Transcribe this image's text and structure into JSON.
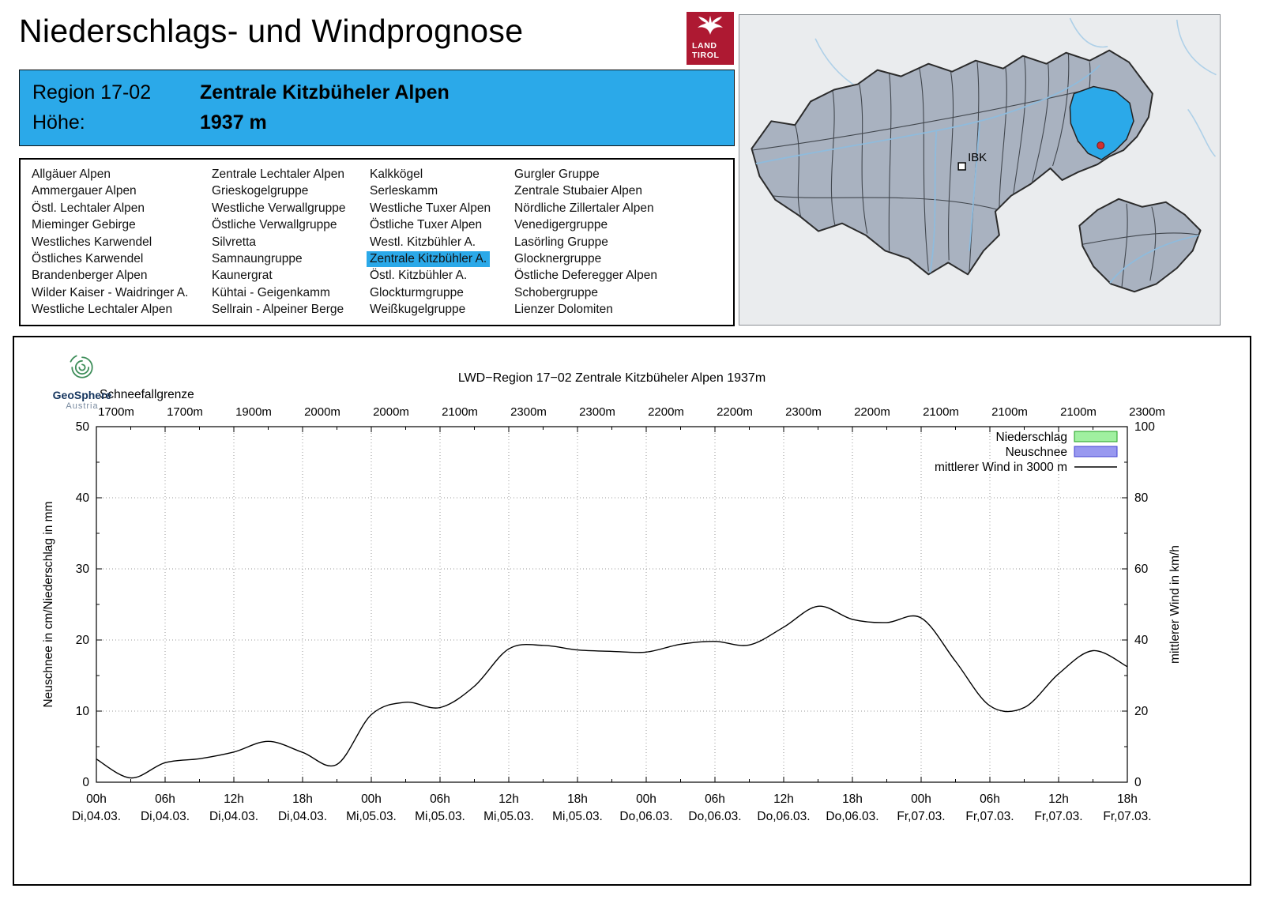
{
  "colors": {
    "accent": "#2BA9E9",
    "tirol_red": "#AE1932",
    "legend_precip_fill": "#A0F0A0",
    "legend_precip_border": "#1F9E1F",
    "legend_snow_fill": "#9898F0",
    "legend_snow_border": "#4040D0",
    "wind_line": "#000000",
    "map_region_fill": "#A9B2C0",
    "map_border": "#2B2B2B",
    "river": "#8FBBDC"
  },
  "header": {
    "title": "Niederschlags- und Windprognose"
  },
  "tirol_logo": {
    "line1": "LAND",
    "line2": "TIROL"
  },
  "region_header": {
    "region_label": "Region 17-02",
    "region_name": "Zentrale Kitzbüheler Alpen",
    "altitude_label": "Höhe:",
    "altitude_value": "1937 m"
  },
  "region_list": {
    "selected": "Zentrale Kitzbühler A.",
    "columns": [
      [
        "Allgäuer Alpen",
        "Ammergauer Alpen",
        "Östl. Lechtaler Alpen",
        "Mieminger Gebirge",
        "Westliches Karwendel",
        "Östliches Karwendel",
        "Brandenberger Alpen",
        "Wilder Kaiser - Waidringer A.",
        "Westliche Lechtaler Alpen"
      ],
      [
        "Zentrale Lechtaler Alpen",
        "Grieskogelgruppe",
        "Westliche Verwallgruppe",
        "Östliche Verwallgruppe",
        "Silvretta",
        "Samnaungruppe",
        "Kaunergrat",
        "Kühtai - Geigenkamm",
        "Sellrain - Alpeiner Berge"
      ],
      [
        "Kalkkögel",
        "Serleskamm",
        "Westliche Tuxer Alpen",
        "Östliche Tuxer Alpen",
        "Westl. Kitzbühler A.",
        "Zentrale Kitzbühler A.",
        "Östl. Kitzbühler A.",
        "Glockturmgruppe",
        "Weißkugelgruppe"
      ],
      [
        "Gurgler Gruppe",
        "Zentrale Stubaier Alpen",
        "Nördliche Zillertaler Alpen",
        "Venedigergruppe",
        "Lasörling Gruppe",
        "Glocknergruppe",
        "Östliche Deferegger Alpen",
        "Schobergruppe",
        "Lienzer Dolomiten"
      ]
    ]
  },
  "map": {
    "ibk_label": "IBK"
  },
  "geosphere": {
    "name": "GeoSphere",
    "country": "Austria"
  },
  "chart_data": {
    "type": "line",
    "title": "LWD−Region 17−02 Zentrale Kitzbüheler Alpen 1937m",
    "snowline_label": "Schneefallgrenze",
    "snowline_values": [
      "1700m",
      "1700m",
      "1900m",
      "2000m",
      "2000m",
      "2100m",
      "2300m",
      "2300m",
      "2200m",
      "2200m",
      "2300m",
      "2200m",
      "2100m",
      "2100m",
      "2100m",
      "2300m"
    ],
    "ylabel_left": "Neuschnee in cm/Niederschlag in mm",
    "ylabel_right": "mittlerer Wind in km/h",
    "ylim_left": [
      0,
      50
    ],
    "ylim_right": [
      0,
      100
    ],
    "x_range_hours": [
      0,
      90
    ],
    "x_ticks": [
      {
        "hour": "00h",
        "date": "Di,04.03."
      },
      {
        "hour": "06h",
        "date": "Di,04.03."
      },
      {
        "hour": "12h",
        "date": "Di,04.03."
      },
      {
        "hour": "18h",
        "date": "Di,04.03."
      },
      {
        "hour": "00h",
        "date": "Mi,05.03."
      },
      {
        "hour": "06h",
        "date": "Mi,05.03."
      },
      {
        "hour": "12h",
        "date": "Mi,05.03."
      },
      {
        "hour": "18h",
        "date": "Mi,05.03."
      },
      {
        "hour": "00h",
        "date": "Do,06.03."
      },
      {
        "hour": "06h",
        "date": "Do,06.03."
      },
      {
        "hour": "12h",
        "date": "Do,06.03."
      },
      {
        "hour": "18h",
        "date": "Do,06.03."
      },
      {
        "hour": "00h",
        "date": "Fr,07.03."
      },
      {
        "hour": "06h",
        "date": "Fr,07.03."
      },
      {
        "hour": "12h",
        "date": "Fr,07.03."
      },
      {
        "hour": "18h",
        "date": "Fr,07.03."
      }
    ],
    "legend": [
      "Niederschlag",
      "Neuschnee",
      "mittlerer Wind in 3000 m"
    ],
    "legend_position": "top-right",
    "grid": true,
    "series": [
      {
        "name": "Niederschlag",
        "type": "bar",
        "axis": "left",
        "unit": "mm",
        "values": []
      },
      {
        "name": "Neuschnee",
        "type": "bar",
        "axis": "left",
        "unit": "cm",
        "values": []
      },
      {
        "name": "mittlerer Wind in 3000 m",
        "type": "line",
        "axis": "right",
        "unit": "km/h",
        "x_hours": [
          0,
          3,
          6,
          9,
          12,
          15,
          18,
          21,
          24,
          27,
          30,
          33,
          36,
          39,
          42,
          45,
          48,
          51,
          54,
          57,
          60,
          63,
          66,
          69,
          72,
          75,
          78,
          81,
          84,
          87,
          90
        ],
        "values": [
          6.5,
          1.2,
          5.5,
          6.6,
          8.5,
          11.5,
          8.4,
          5.0,
          19.0,
          22.5,
          21.0,
          27.0,
          37.5,
          38.5,
          37.2,
          36.8,
          36.6,
          38.8,
          39.6,
          38.6,
          43.6,
          49.5,
          45.8,
          44.9,
          46.2,
          34.0,
          21.5,
          21.0,
          30.5,
          37.0,
          32.5
        ]
      }
    ]
  }
}
